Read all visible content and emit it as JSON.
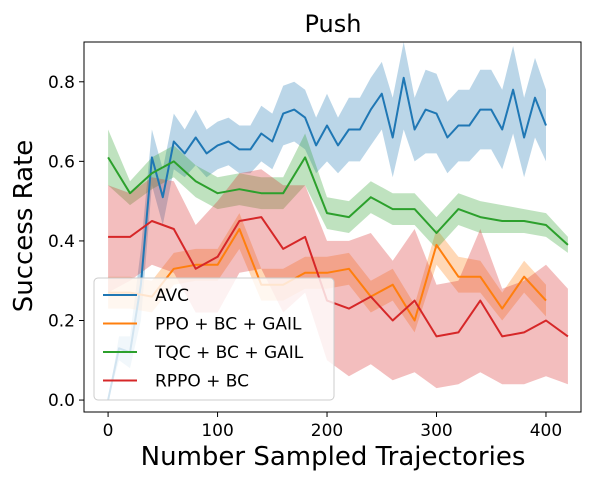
{
  "chart_data": {
    "type": "line",
    "title": "Push",
    "xlabel": "Number Sampled Trajectories",
    "ylabel": "Success Rate",
    "xlim": [
      -22,
      432
    ],
    "ylim": [
      -0.03,
      0.9
    ],
    "xticks": [
      0,
      100,
      200,
      300,
      400
    ],
    "yticks": [
      0.0,
      0.2,
      0.4,
      0.6,
      0.8
    ],
    "xtick_labels": [
      "0",
      "100",
      "200",
      "300",
      "400"
    ],
    "ytick_labels": [
      "0.0",
      "0.2",
      "0.4",
      "0.6",
      "0.8"
    ],
    "grid": false,
    "legend_position": "bottom-left",
    "series": [
      {
        "name": "AVC",
        "color": "#1f77b4",
        "x": [
          0,
          10,
          20,
          30,
          40,
          50,
          60,
          70,
          80,
          90,
          100,
          110,
          120,
          130,
          140,
          150,
          160,
          170,
          180,
          190,
          200,
          210,
          220,
          230,
          240,
          250,
          260,
          270,
          280,
          290,
          300,
          310,
          320,
          330,
          340,
          350,
          360,
          370,
          380,
          390,
          400
        ],
        "y": [
          0.0,
          0.13,
          0.12,
          0.29,
          0.61,
          0.51,
          0.65,
          0.62,
          0.66,
          0.62,
          0.64,
          0.65,
          0.63,
          0.63,
          0.67,
          0.65,
          0.72,
          0.73,
          0.71,
          0.64,
          0.69,
          0.64,
          0.68,
          0.68,
          0.73,
          0.77,
          0.66,
          0.81,
          0.68,
          0.73,
          0.72,
          0.66,
          0.69,
          0.69,
          0.73,
          0.73,
          0.68,
          0.78,
          0.66,
          0.76,
          0.69
        ],
        "lower": [
          0.0,
          0.1,
          0.08,
          0.2,
          0.54,
          0.44,
          0.58,
          0.56,
          0.59,
          0.56,
          0.58,
          0.59,
          0.57,
          0.57,
          0.6,
          0.58,
          0.64,
          0.65,
          0.63,
          0.57,
          0.6,
          0.57,
          0.6,
          0.6,
          0.64,
          0.68,
          0.56,
          0.68,
          0.6,
          0.62,
          0.62,
          0.57,
          0.6,
          0.6,
          0.63,
          0.63,
          0.58,
          0.67,
          0.56,
          0.66,
          0.6
        ],
        "upper": [
          0.0,
          0.16,
          0.16,
          0.38,
          0.68,
          0.58,
          0.72,
          0.68,
          0.73,
          0.68,
          0.7,
          0.71,
          0.69,
          0.69,
          0.74,
          0.72,
          0.79,
          0.8,
          0.78,
          0.71,
          0.77,
          0.71,
          0.76,
          0.76,
          0.81,
          0.85,
          0.76,
          0.9,
          0.76,
          0.83,
          0.82,
          0.75,
          0.78,
          0.78,
          0.83,
          0.83,
          0.78,
          0.89,
          0.76,
          0.86,
          0.78
        ]
      },
      {
        "name": "PPO + BC + GAIL",
        "color": "#ff7f0e",
        "x": [
          0,
          20,
          40,
          60,
          80,
          100,
          120,
          140,
          160,
          180,
          200,
          220,
          240,
          260,
          280,
          300,
          320,
          340,
          360,
          380,
          400
        ],
        "y": [
          0.27,
          0.27,
          0.26,
          0.33,
          0.34,
          0.34,
          0.43,
          0.29,
          0.29,
          0.32,
          0.32,
          0.33,
          0.26,
          0.29,
          0.2,
          0.39,
          0.31,
          0.31,
          0.23,
          0.31,
          0.25
        ],
        "lower": [
          0.23,
          0.23,
          0.22,
          0.29,
          0.3,
          0.3,
          0.38,
          0.25,
          0.25,
          0.28,
          0.28,
          0.29,
          0.22,
          0.25,
          0.17,
          0.34,
          0.27,
          0.27,
          0.2,
          0.27,
          0.21
        ],
        "upper": [
          0.31,
          0.31,
          0.3,
          0.37,
          0.38,
          0.38,
          0.47,
          0.33,
          0.33,
          0.36,
          0.36,
          0.37,
          0.3,
          0.33,
          0.24,
          0.43,
          0.36,
          0.35,
          0.27,
          0.35,
          0.29
        ]
      },
      {
        "name": "TQC + BC + GAIL",
        "color": "#2ca02c",
        "x": [
          0,
          20,
          40,
          60,
          80,
          100,
          120,
          140,
          160,
          180,
          200,
          220,
          240,
          260,
          280,
          300,
          320,
          340,
          360,
          380,
          400,
          420
        ],
        "y": [
          0.61,
          0.52,
          0.57,
          0.6,
          0.55,
          0.52,
          0.53,
          0.52,
          0.52,
          0.61,
          0.47,
          0.46,
          0.51,
          0.48,
          0.48,
          0.42,
          0.48,
          0.46,
          0.45,
          0.45,
          0.44,
          0.39
        ],
        "lower": [
          0.54,
          0.49,
          0.53,
          0.56,
          0.51,
          0.48,
          0.49,
          0.48,
          0.48,
          0.54,
          0.43,
          0.42,
          0.47,
          0.44,
          0.44,
          0.38,
          0.44,
          0.42,
          0.42,
          0.42,
          0.41,
          0.37
        ],
        "upper": [
          0.68,
          0.55,
          0.61,
          0.64,
          0.59,
          0.56,
          0.57,
          0.56,
          0.56,
          0.67,
          0.51,
          0.5,
          0.55,
          0.52,
          0.52,
          0.46,
          0.52,
          0.5,
          0.49,
          0.48,
          0.47,
          0.41
        ]
      },
      {
        "name": "RPPO + BC",
        "color": "#d62728",
        "x": [
          0,
          20,
          40,
          60,
          80,
          100,
          120,
          140,
          160,
          180,
          200,
          220,
          240,
          260,
          280,
          300,
          320,
          340,
          360,
          380,
          400,
          420
        ],
        "y": [
          0.41,
          0.41,
          0.45,
          0.43,
          0.33,
          0.36,
          0.45,
          0.46,
          0.38,
          0.41,
          0.25,
          0.23,
          0.26,
          0.2,
          0.25,
          0.16,
          0.17,
          0.25,
          0.16,
          0.17,
          0.2,
          0.16
        ],
        "lower": [
          0.27,
          0.3,
          0.34,
          0.32,
          0.22,
          0.22,
          0.32,
          0.33,
          0.22,
          0.27,
          0.1,
          0.06,
          0.09,
          0.05,
          0.07,
          0.03,
          0.04,
          0.07,
          0.04,
          0.04,
          0.06,
          0.04
        ],
        "upper": [
          0.54,
          0.52,
          0.56,
          0.55,
          0.44,
          0.5,
          0.57,
          0.58,
          0.54,
          0.54,
          0.4,
          0.4,
          0.42,
          0.35,
          0.43,
          0.29,
          0.3,
          0.43,
          0.28,
          0.3,
          0.34,
          0.28
        ]
      }
    ]
  }
}
